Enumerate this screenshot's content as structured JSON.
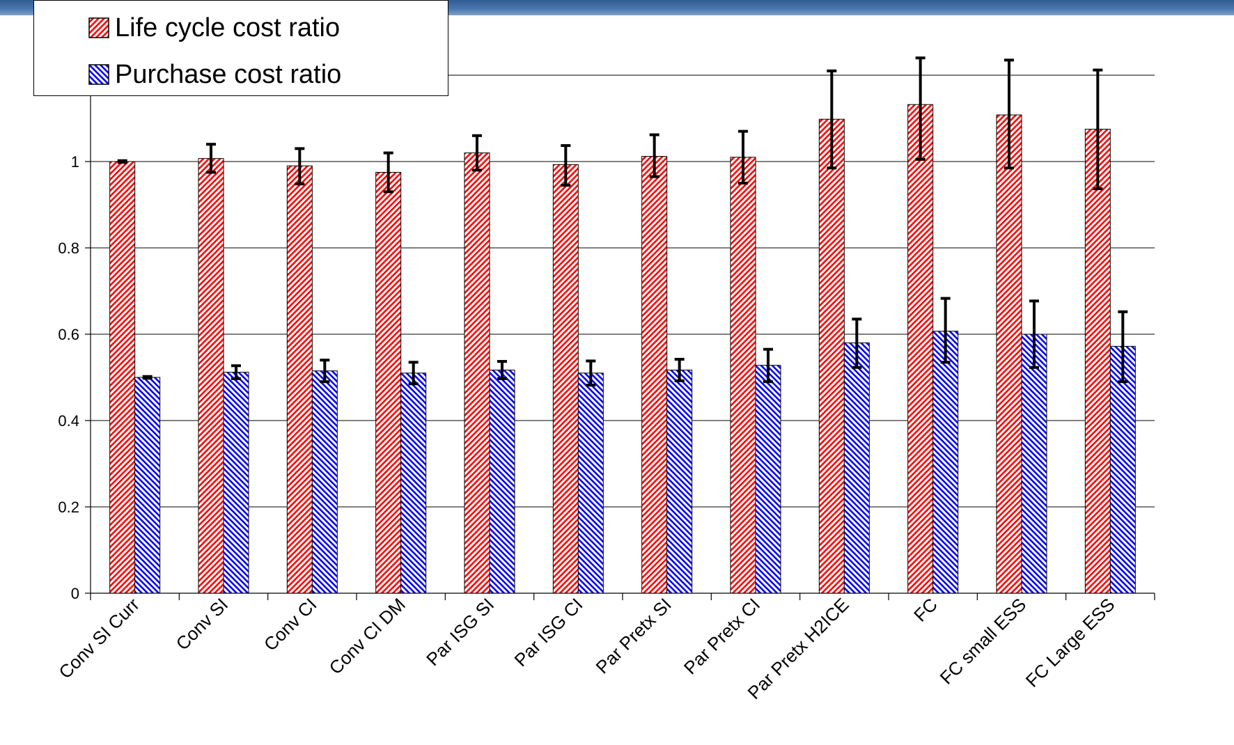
{
  "chart_data": {
    "type": "bar",
    "title": "",
    "xlabel": "",
    "ylabel": "",
    "ylim": [
      0,
      1.2
    ],
    "yticks": [
      "0",
      "0.2",
      "0.4",
      "0.6",
      "0.8",
      "1"
    ],
    "ytick_values": [
      0,
      0.2,
      0.4,
      0.6,
      0.8,
      1
    ],
    "grid": "horizontal",
    "legend_position": "top-left",
    "categories": [
      "Conv SI Curr",
      "Conv SI",
      "Conv CI",
      "Conv CI DM",
      "Par ISG SI",
      "Par ISG CI",
      "Par Pretx SI",
      "Par Pretx CI",
      "Par Pretx H2ICE",
      "FC",
      "FC small ESS",
      "FC Large ESS"
    ],
    "series": [
      {
        "name": "Life cycle cost ratio",
        "color": "#ff0000",
        "pattern": "diagonal-up",
        "values": [
          1.0,
          1.007,
          0.99,
          0.975,
          1.02,
          0.993,
          1.012,
          1.01,
          1.098,
          1.132,
          1.108,
          1.075
        ],
        "error_low": [
          0.998,
          0.975,
          0.948,
          0.93,
          0.98,
          0.945,
          0.965,
          0.95,
          0.985,
          1.005,
          0.985,
          0.937
        ],
        "error_high": [
          1.002,
          1.04,
          1.03,
          1.02,
          1.06,
          1.037,
          1.062,
          1.07,
          1.21,
          1.24,
          1.235,
          1.212
        ]
      },
      {
        "name": "Purchase cost ratio",
        "color": "#0000ff",
        "pattern": "diagonal-down",
        "values": [
          0.5,
          0.512,
          0.515,
          0.51,
          0.517,
          0.51,
          0.517,
          0.528,
          0.58,
          0.607,
          0.6,
          0.572
        ],
        "error_low": [
          0.498,
          0.497,
          0.49,
          0.485,
          0.497,
          0.482,
          0.492,
          0.49,
          0.523,
          0.535,
          0.523,
          0.49
        ],
        "error_high": [
          0.502,
          0.527,
          0.54,
          0.535,
          0.537,
          0.538,
          0.542,
          0.565,
          0.635,
          0.683,
          0.677,
          0.652
        ]
      }
    ]
  }
}
